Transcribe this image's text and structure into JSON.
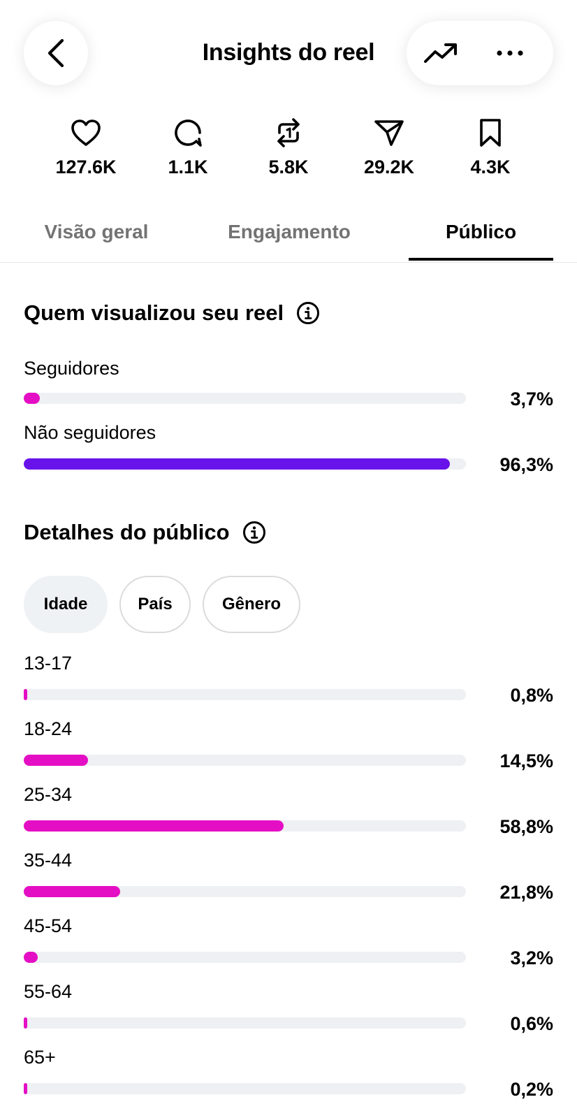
{
  "header": {
    "title": "Insights do reel",
    "back_icon": "chevron-left-icon",
    "trend_icon": "trending-up-icon",
    "more_icon": "more-horizontal-icon"
  },
  "stats": [
    {
      "icon": "heart-icon",
      "value": "127.6K"
    },
    {
      "icon": "comment-icon",
      "value": "1.1K"
    },
    {
      "icon": "repost-icon",
      "value": "5.8K"
    },
    {
      "icon": "send-icon",
      "value": "29.2K"
    },
    {
      "icon": "bookmark-icon",
      "value": "4.3K"
    }
  ],
  "tabs": [
    {
      "label": "Visão geral",
      "active": false
    },
    {
      "label": "Engajamento",
      "active": false
    },
    {
      "label": "Público",
      "active": true
    }
  ],
  "viewers": {
    "title": "Quem visualizou seu reel",
    "rows": [
      {
        "label": "Seguidores",
        "value_text": "3,7%",
        "percent": 3.7,
        "color": "#e40fc4"
      },
      {
        "label": "Não seguidores",
        "value_text": "96,3%",
        "percent": 96.3,
        "color": "#6813ea"
      }
    ]
  },
  "audience": {
    "title": "Detalhes do público",
    "chips": [
      {
        "label": "Idade",
        "selected": true
      },
      {
        "label": "País",
        "selected": false
      },
      {
        "label": "Gênero",
        "selected": false
      }
    ],
    "bar_color": "#e40fc4",
    "rows": [
      {
        "label": "13-17",
        "value_text": "0,8%",
        "percent": 0.8
      },
      {
        "label": "18-24",
        "value_text": "14,5%",
        "percent": 14.5
      },
      {
        "label": "25-34",
        "value_text": "58,8%",
        "percent": 58.8
      },
      {
        "label": "35-44",
        "value_text": "21,8%",
        "percent": 21.8
      },
      {
        "label": "45-54",
        "value_text": "3,2%",
        "percent": 3.2
      },
      {
        "label": "55-64",
        "value_text": "0,6%",
        "percent": 0.6
      },
      {
        "label": "65+",
        "value_text": "0,2%",
        "percent": 0.2
      }
    ]
  }
}
